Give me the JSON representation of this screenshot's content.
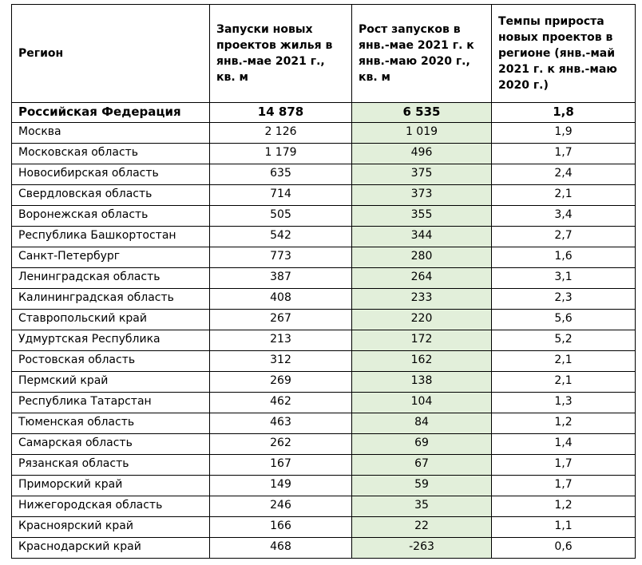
{
  "table": {
    "header": [
      "Регион",
      "Запуски новых проектов жилья в янв.-мае 2021 г., кв. м",
      "Рост запусков в янв.-мае 2021 г. к янв.-маю 2020 г., кв. м",
      "Темпы прироста новых проектов в регионе (янв.-май 2021 г. к янв.-маю 2020 г.)"
    ],
    "rows": [
      [
        "Российская Федерация",
        "14 878",
        "6 535",
        "1,8"
      ],
      [
        "Москва",
        "2 126",
        "1 019",
        "1,9"
      ],
      [
        "Московская область",
        "1 179",
        "496",
        "1,7"
      ],
      [
        "Новосибирская область",
        "635",
        "375",
        "2,4"
      ],
      [
        "Свердловская область",
        "714",
        "373",
        "2,1"
      ],
      [
        "Воронежская область",
        "505",
        "355",
        "3,4"
      ],
      [
        "Республика Башкортостан",
        "542",
        "344",
        "2,7"
      ],
      [
        "Санкт-Петербург",
        "773",
        "280",
        "1,6"
      ],
      [
        "Ленинградская область",
        "387",
        "264",
        "3,1"
      ],
      [
        "Калининградская область",
        "408",
        "233",
        "2,3"
      ],
      [
        "Ставропольский край",
        "267",
        "220",
        "5,6"
      ],
      [
        "Удмуртская Республика",
        "213",
        "172",
        "5,2"
      ],
      [
        "Ростовская область",
        "312",
        "162",
        "2,1"
      ],
      [
        "Пермский край",
        "269",
        "138",
        "2,1"
      ],
      [
        "Республика Татарстан",
        "462",
        "104",
        "1,3"
      ],
      [
        "Тюменская область",
        "463",
        "84",
        "1,2"
      ],
      [
        "Самарская область",
        "262",
        "69",
        "1,4"
      ],
      [
        "Рязанская область",
        "167",
        "67",
        "1,7"
      ],
      [
        "Приморский край",
        "149",
        "59",
        "1,7"
      ],
      [
        "Нижегородская область",
        "246",
        "35",
        "1,2"
      ],
      [
        "Красноярский край",
        "166",
        "22",
        "1,1"
      ],
      [
        "Краснодарский край",
        "468",
        "-263",
        "0,6"
      ]
    ]
  }
}
